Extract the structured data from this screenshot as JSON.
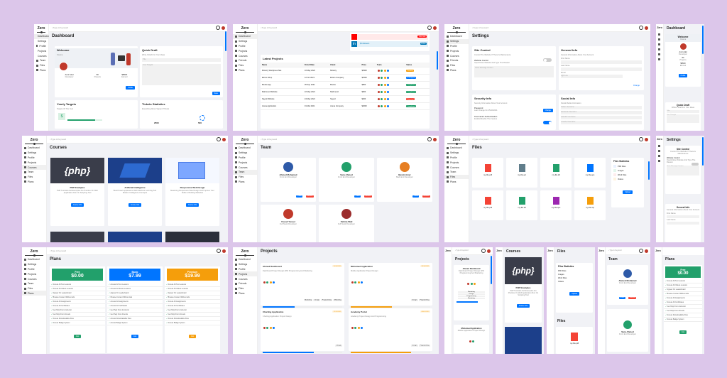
{
  "app": {
    "logo": "Zero",
    "search_placeholder": "Type A Keyword"
  },
  "nav": [
    "Dashboard",
    "Settings",
    "Profile",
    "Projects",
    "Courses",
    "Friends",
    "Files",
    "Plans"
  ],
  "nav_alt": [
    "Dashboard",
    "Settings",
    "Profile",
    "Projects",
    "Courses",
    "Team",
    "Files",
    "Plans"
  ],
  "dashboard": {
    "title": "Dashboard",
    "welcome": {
      "title": "Welcome",
      "name": "Osama",
      "user": "Amir Adel",
      "role": "Developer",
      "projects_num": "80",
      "projects_label": "Projects",
      "earned_num": "$8500",
      "earned_label": "Earned",
      "button": "Profile"
    },
    "draft": {
      "title": "Quick Draft",
      "subtitle": "Write A Draft For Your Ideas",
      "title_placeholder": "Title",
      "body_placeholder": "Your Thought",
      "button": "Save"
    },
    "targets": {
      "title": "Yearly Targets",
      "subtitle": "Targets Of The Year",
      "value": "$"
    },
    "tickets": {
      "title": "Tickets Statistics",
      "subtitle": "Everything About Support Tickets",
      "v1": "2500",
      "v2": "500"
    }
  },
  "projects_table": {
    "social": [
      {
        "label": "",
        "color": "#ff0000",
        "btn": "Subscribe"
      },
      {
        "label": "$ Followers",
        "color": "#0077b5",
        "btn": "Follow"
      }
    ],
    "title": "Latest Projects",
    "headers": [
      "Name",
      "Finish Date",
      "Client",
      "Price",
      "Team",
      "Status"
    ],
    "rows": [
      {
        "name": "Ministry Wordpress Site",
        "date": "10 May 2022",
        "client": "Ministry",
        "price": "$5300",
        "status": "Pending",
        "color": "#f59e0b"
      },
      {
        "name": "Elzero Shop",
        "date": "12 Oct 2021",
        "client": "Elzero Company",
        "price": "$1500",
        "status": "In Progress",
        "color": "#0075ff"
      },
      {
        "name": "Bouba App",
        "date": "05 Sep 2021",
        "client": "Bouba",
        "price": "$800",
        "status": "Completed",
        "color": "#22a06b"
      },
      {
        "name": "Mahmoud Website",
        "date": "22 May 2021",
        "client": "Mahmoud",
        "price": "$600",
        "status": "Completed",
        "color": "#22a06b"
      },
      {
        "name": "Sayed Website",
        "date": "24 May 2021",
        "client": "Sayed",
        "price": "$300",
        "status": "Rejected",
        "color": "#f44336"
      },
      {
        "name": "Arena Application",
        "date": "01 Mar 2021",
        "client": "Arena Company",
        "price": "$2600",
        "status": "Completed",
        "color": "#22a06b"
      }
    ]
  },
  "settings": {
    "title": "Settings",
    "site_control": {
      "title": "Site Control",
      "subtitle": "Control The Website If There Is Maintenance",
      "toggle_label": "Website Control",
      "toggle_sub": "Open/Close Website And Type The Reason",
      "textarea": "Close Message Content"
    },
    "general": {
      "title": "General Info",
      "subtitle": "General Information About Your Account",
      "first": "First Name",
      "last": "Last Name",
      "email": "Email",
      "email_value": "o@nn.sa",
      "change": "Change"
    },
    "security": {
      "title": "Security Info",
      "subtitle": "Security Information About Your Account",
      "password": "Password",
      "password_sub": "Last Change On 25/10/2021",
      "change": "Change",
      "twofa": "Two-Factor Authentication",
      "twofa_sub": "Enable/Disable The Feature"
    },
    "social": {
      "title": "Social Info",
      "subtitle": "Social Media Information",
      "fields": [
        "Twitter Username",
        "Facebook Username",
        "Linkedin Username",
        "Youtube Username"
      ]
    }
  },
  "courses": {
    "title": "Courses",
    "items": [
      {
        "title": "PHP Examples",
        "desc": "PHP Tutorials And Examples Are Practice On Web Application Run On Scripting Tool",
        "button": "Course Info"
      },
      {
        "title": "Artificial Intelligence",
        "desc": "Build Smart Applications With Machine Learning And Modern Intelligence Concepts",
        "button": "Course Info"
      },
      {
        "title": "Responsive Web Design",
        "desc": "Mastering Responsive Web Design And Improve Your Skills In Building Websites",
        "button": "Course Info"
      }
    ]
  },
  "team": {
    "title": "Team",
    "members": [
      {
        "name": "Ahmed Mohamed",
        "role": "Front End Developer",
        "b1": "Profile",
        "b2": "Remove"
      },
      {
        "name": "Sara Ahmed",
        "role": "Front End Developer",
        "b1": "Profile",
        "b2": "Remove"
      },
      {
        "name": "Basim Amer",
        "role": "Back End Developer",
        "b1": "Profile",
        "b2": "Remove"
      },
      {
        "name": "Yousef Yasser",
        "role": "Full Stack Developer",
        "b1": "Profile",
        "b2": "Remove"
      },
      {
        "name": "Fatima Wail",
        "role": "Full Stack Developer",
        "b1": "Profile",
        "b2": "Remove"
      }
    ]
  },
  "files": {
    "title": "Files",
    "items": [
      {
        "name": "my-file.pdf",
        "color": "#f44336"
      },
      {
        "name": "my-file.avi",
        "color": "#607d8b"
      },
      {
        "name": "my-file.dll",
        "color": "#22a06b"
      },
      {
        "name": "my-file.eps",
        "color": "#0075ff"
      },
      {
        "name": "my-file.pdf",
        "color": "#f44336"
      },
      {
        "name": "my-file.dll",
        "color": "#22a06b"
      },
      {
        "name": "my-file.eps",
        "color": "#9c27b0"
      },
      {
        "name": "my-file.zip",
        "color": "#f59e0b"
      }
    ],
    "stats": {
      "title": "Files Statistics",
      "rows": [
        "PDF Files",
        "Images",
        "Word Files",
        "Videos"
      ],
      "button": "Upload"
    }
  },
  "plans": {
    "title": "Plans",
    "items": [
      {
        "name": "Free",
        "price": "$0.00",
        "color": "#22a06b",
        "button": "Join"
      },
      {
        "name": "Basic",
        "price": "$7.99",
        "color": "#0075ff",
        "button": "Join"
      },
      {
        "name": "Premium",
        "price": "$19.99",
        "color": "#f59e0b",
        "button": "Join"
      }
    ],
    "features": [
      "Access All Text Lessons",
      "Access All Videos Lessons",
      "Appear On Leaderboard",
      "Browse Content Without Ads",
      "Access All Assignments",
      "Access All Certificates",
      "Get Help From Instructor",
      "Get Help From Friends",
      "Access Downloadable Files",
      "Access Badge System"
    ]
  },
  "projects_cards": {
    "title": "Projects",
    "items": [
      {
        "name": "Ahmed Dashboard",
        "desc": "Dashboard Project Design With Programming And Marketing",
        "date": "15/10/2021",
        "tags": [
          "Marketing",
          "Design",
          "Programming",
          "Marketing"
        ]
      },
      {
        "name": "Mohamed Application",
        "desc": "Mobile Application Project Design",
        "date": "28/10/2021",
        "tags": [
          "Design",
          "Programming"
        ]
      },
      {
        "name": "Charting Application",
        "desc": "Charting Application Project Design",
        "date": "12/12/2021",
        "tags": [
          "Design"
        ]
      },
      {
        "name": "Academy Portal",
        "desc": "Academy Project Design And Programming",
        "date": "09/01/2022",
        "tags": [
          "Design",
          "Programming"
        ]
      }
    ]
  }
}
